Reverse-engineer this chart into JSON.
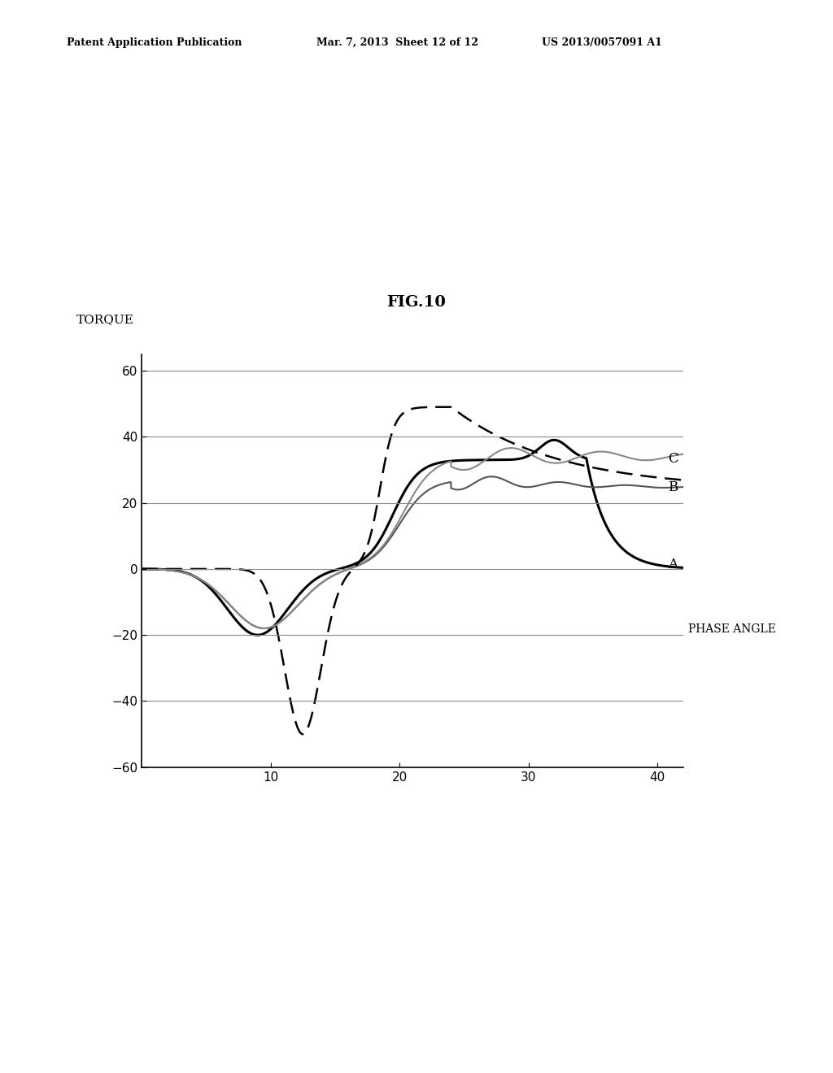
{
  "title": "FIG.10",
  "header_left": "Patent Application Publication",
  "header_mid": "Mar. 7, 2013  Sheet 12 of 12",
  "header_right": "US 2013/0057091 A1",
  "ylabel": "TORQUE",
  "xlabel": "PHASE ANGLE",
  "xlim": [
    0,
    42
  ],
  "ylim": [
    -60,
    65
  ],
  "yticks": [
    -60,
    -40,
    -20,
    0,
    20,
    40,
    60
  ],
  "xticks": [
    10,
    20,
    30,
    40
  ],
  "background_color": "#ffffff",
  "curve_A_color": "#000000",
  "curve_B_color": "#555555",
  "curve_C_color": "#888888",
  "curve_dashed_color": "#000000",
  "label_A": "A",
  "label_B": "B",
  "label_C": "C"
}
